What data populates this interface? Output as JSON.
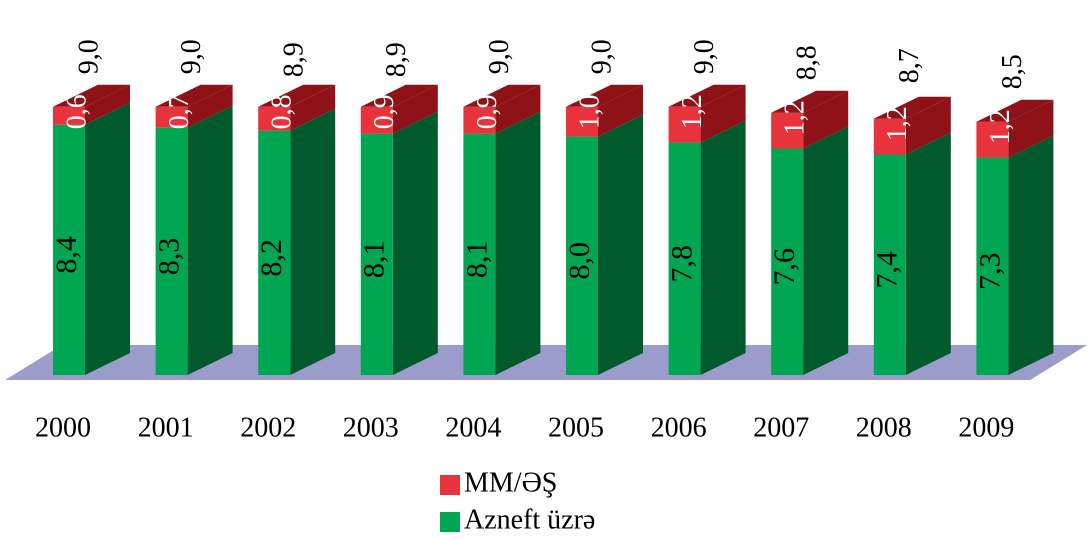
{
  "chart_data": {
    "type": "bar3d_stacked",
    "categories": [
      "2000",
      "2001",
      "2002",
      "2003",
      "2004",
      "2005",
      "2006",
      "2007",
      "2008",
      "2009"
    ],
    "series": [
      {
        "name": "Azneft üzrə",
        "color": "#00a651",
        "side_color": "#005a2b",
        "values": [
          8.4,
          8.3,
          8.2,
          8.1,
          8.1,
          8.0,
          7.8,
          7.6,
          7.4,
          7.3
        ],
        "value_labels": [
          "8,4",
          "8,3",
          "8,2",
          "8,1",
          "8,1",
          "8,0",
          "7,8",
          "7,6",
          "7,4",
          "7,3"
        ]
      },
      {
        "name": "MM/ƏŞ",
        "color": "#e8323c",
        "side_color": "#8e1218",
        "values": [
          0.6,
          0.7,
          0.8,
          0.9,
          0.9,
          1.0,
          1.2,
          1.2,
          1.2,
          1.2
        ],
        "value_labels": [
          "0,6",
          "0,7",
          "0,8",
          "0,9",
          "0,9",
          "1,0",
          "1,2",
          "1,2",
          "1,2",
          "1,2"
        ]
      }
    ],
    "totals": {
      "values": [
        9.0,
        9.0,
        8.9,
        8.9,
        9.0,
        9.0,
        9.0,
        8.8,
        8.7,
        8.5
      ],
      "value_labels": [
        "9,0",
        "9,0",
        "8,9",
        "8,9",
        "9,0",
        "9,0",
        "9,0",
        "8,8",
        "8,7",
        "8,5"
      ]
    }
  }
}
